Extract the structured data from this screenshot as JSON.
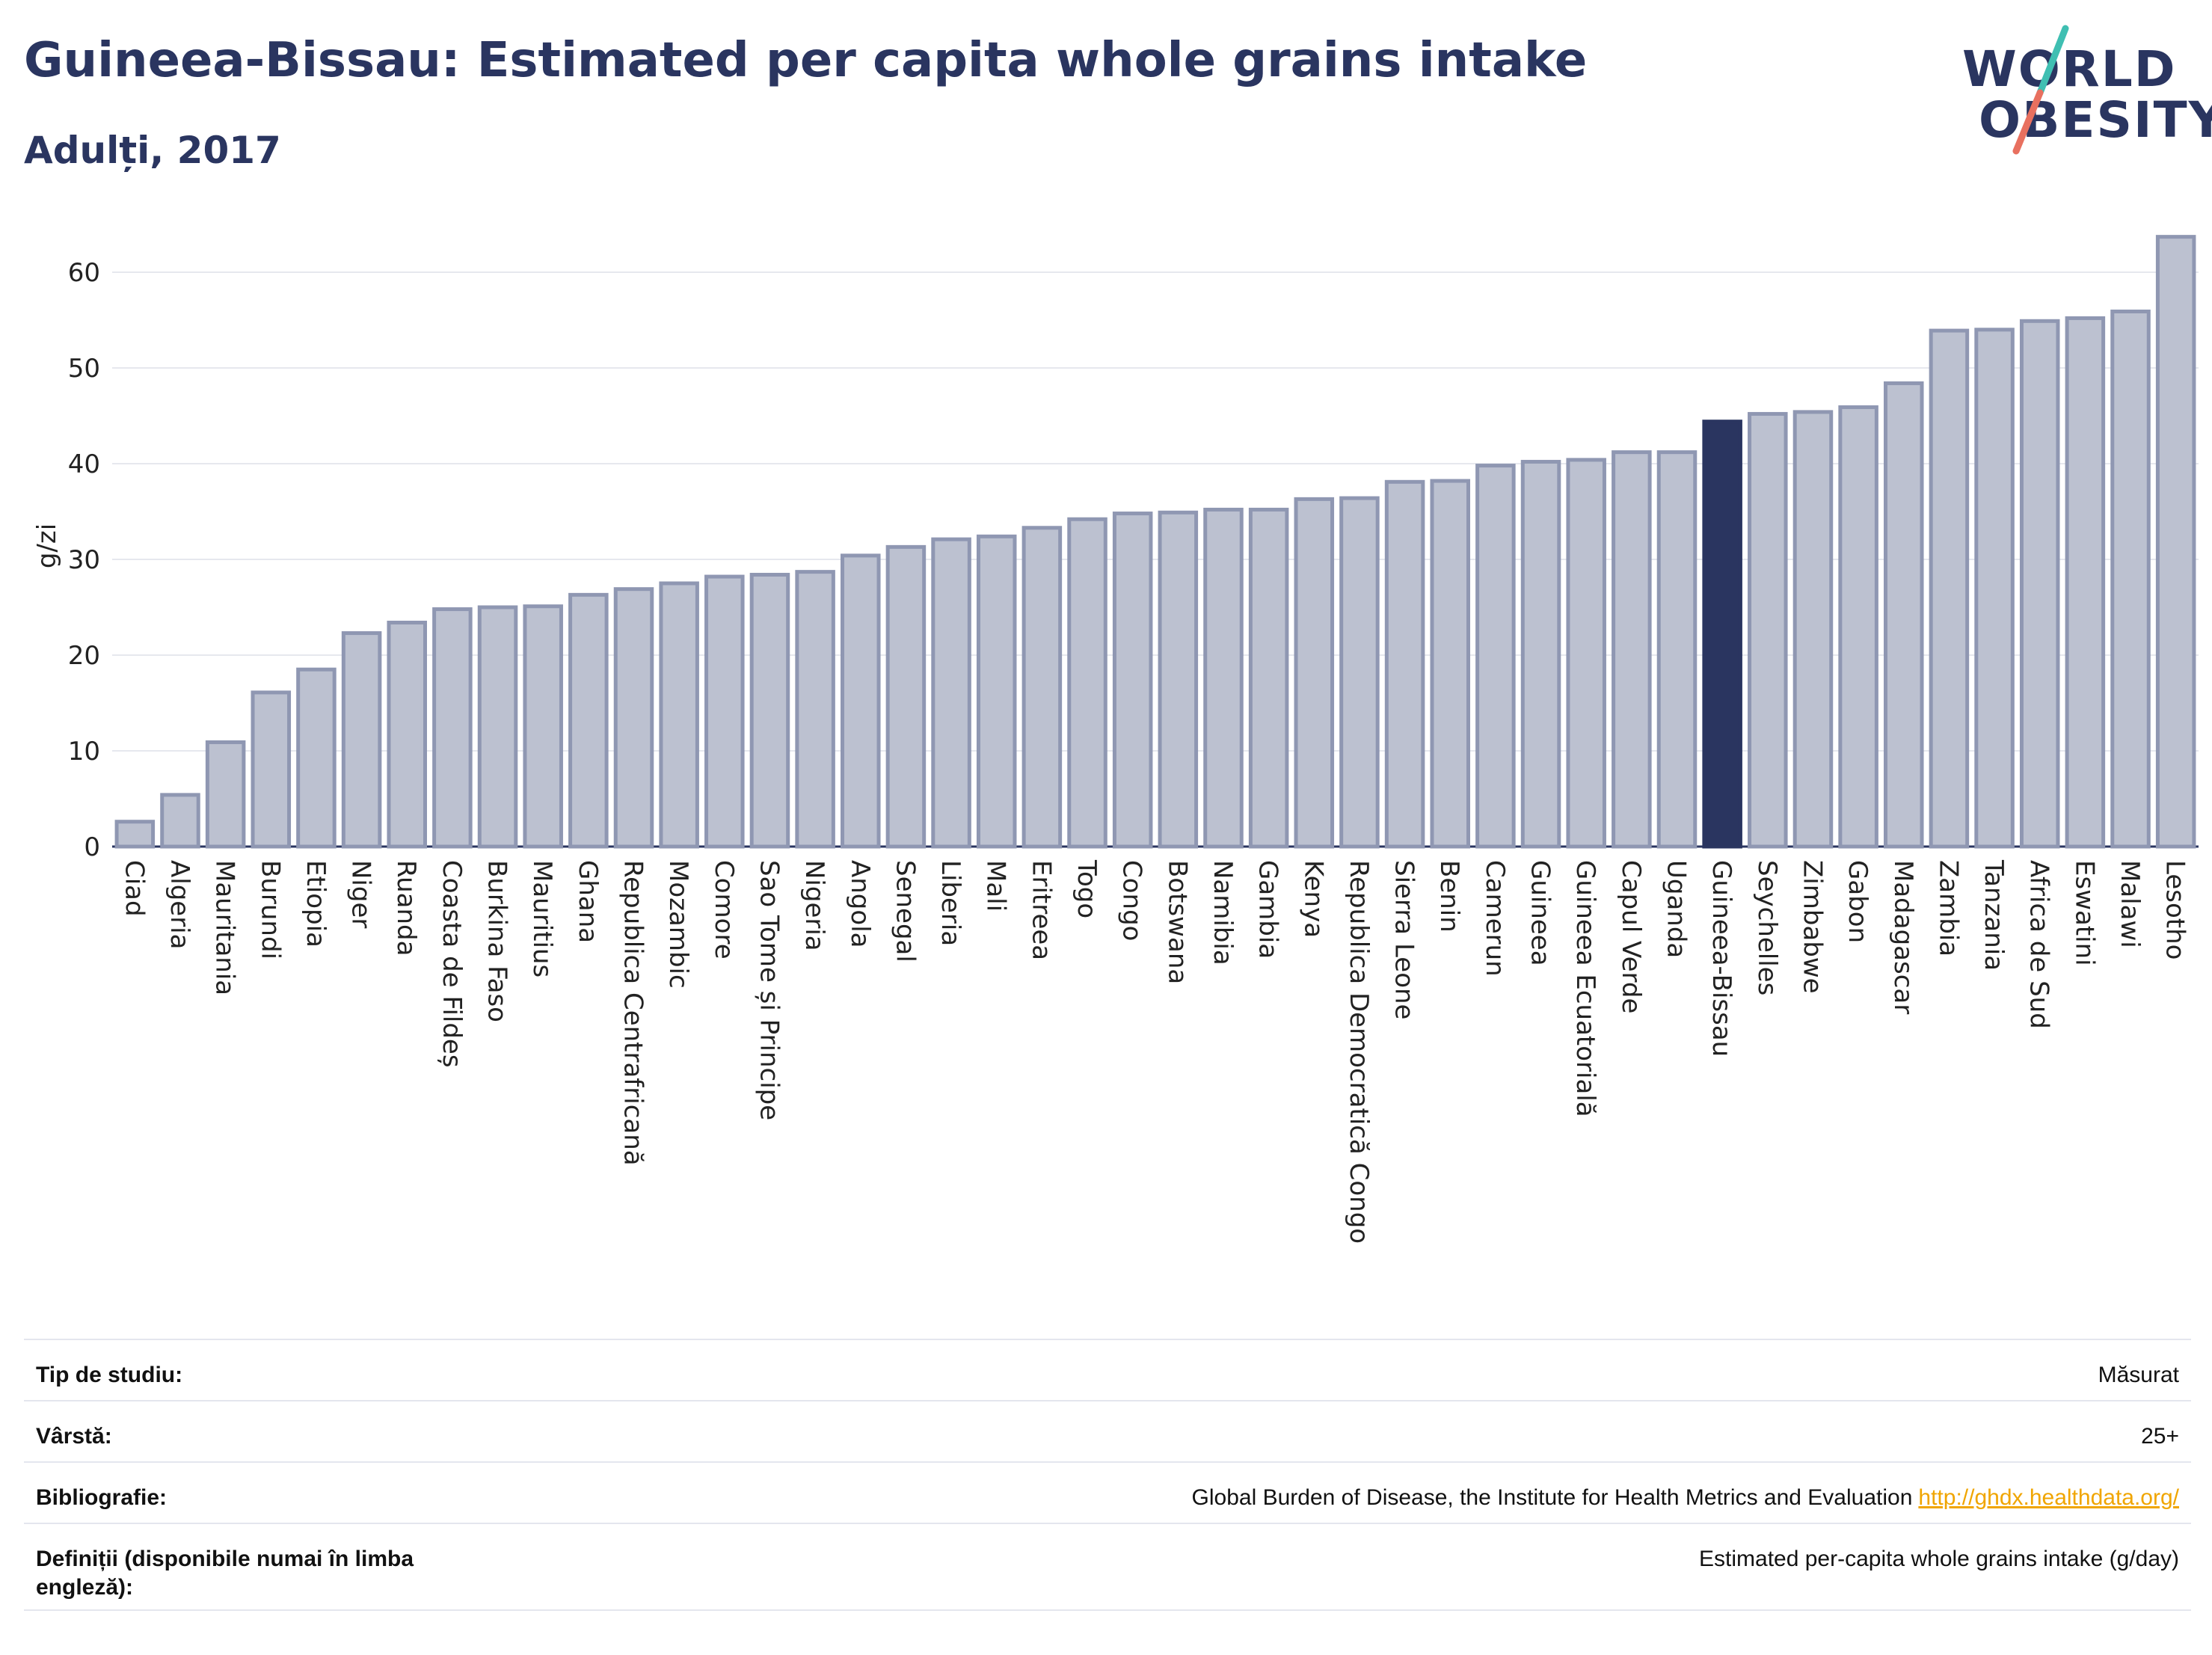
{
  "header": {
    "title": "Guineea-Bissau: Estimated per capita whole grains intake",
    "subtitle": "Adulți, 2017"
  },
  "logo": {
    "line1": "WORLD",
    "line2": "OBESITY",
    "accent_colors": [
      "#3fbfb2",
      "#e8705f"
    ]
  },
  "chart_data": {
    "type": "bar",
    "ylabel": "g/zi",
    "ylim": [
      0,
      65
    ],
    "yticks": [
      0,
      10,
      20,
      30,
      40,
      50,
      60
    ],
    "grid": true,
    "highlight": "Guineea-Bissau",
    "colors": {
      "bar": "#bcc1d0",
      "bar_border": "#8f97b2",
      "highlight": "#2a3560"
    },
    "categories": [
      "Ciad",
      "Algeria",
      "Mauritania",
      "Burundi",
      "Etiopia",
      "Niger",
      "Ruanda",
      "Coasta de Fildeș",
      "Burkina Faso",
      "Mauritius",
      "Ghana",
      "Republica Centrafricană",
      "Mozambic",
      "Comore",
      "Sao Tome și Principe",
      "Nigeria",
      "Angola",
      "Senegal",
      "Liberia",
      "Mali",
      "Eritreea",
      "Togo",
      "Congo",
      "Botswana",
      "Namibia",
      "Gambia",
      "Kenya",
      "Republica Democratică Congo",
      "Sierra Leone",
      "Benin",
      "Camerun",
      "Guineea",
      "Guineea Ecuatorială",
      "Capul Verde",
      "Uganda",
      "Guineea-Bissau",
      "Seychelles",
      "Zimbabwe",
      "Gabon",
      "Madagascar",
      "Zambia",
      "Tanzania",
      "Africa de Sud",
      "Eswatini",
      "Malawi",
      "Lesotho"
    ],
    "values": [
      2.6,
      5.4,
      10.9,
      16.1,
      18.5,
      22.3,
      23.4,
      24.8,
      25.0,
      25.1,
      26.3,
      26.9,
      27.5,
      28.2,
      28.4,
      28.7,
      30.4,
      31.3,
      32.1,
      32.4,
      33.3,
      34.2,
      34.8,
      34.9,
      35.2,
      35.2,
      36.3,
      36.4,
      38.1,
      38.2,
      39.8,
      40.2,
      40.4,
      41.2,
      41.2,
      44.4,
      45.2,
      45.4,
      45.9,
      48.4,
      53.9,
      54.0,
      54.9,
      55.2,
      55.9,
      63.7
    ]
  },
  "meta": [
    {
      "key": "Tip de studiu:",
      "value": "Măsurat"
    },
    {
      "key": "Vârstă:",
      "value": "25+"
    },
    {
      "key": "Bibliografie:",
      "value": "Global Burden of Disease, the Institute for Health Metrics and Evaluation",
      "link": "http://ghdx.healthdata.org/"
    },
    {
      "key": "Definiții (disponibile numai în limba engleză):",
      "value": "Estimated per-capita whole grains intake (g/day)"
    }
  ]
}
